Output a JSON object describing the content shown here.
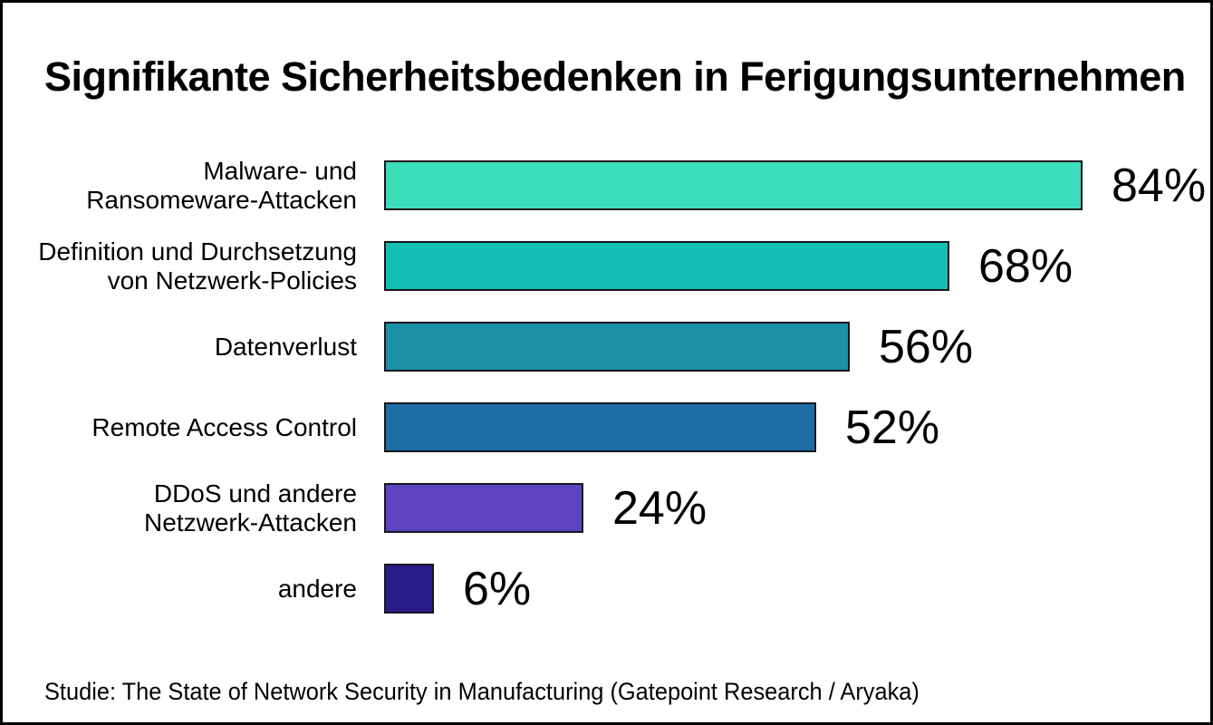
{
  "chart_data": {
    "type": "bar",
    "orientation": "horizontal",
    "title": "Signifikante Sicherheitsbedenken in Ferigungsunternehmen",
    "categories": [
      "Malware- und\nRansomeware-Attacken",
      "Definition und Durchsetzung\nvon Netzwerk-Policies",
      "Datenverlust",
      "Remote Access Control",
      "DDoS und andere\nNetzwerk-Attacken",
      "andere"
    ],
    "values": [
      84,
      68,
      56,
      52,
      24,
      6
    ],
    "value_labels": [
      "84%",
      "68%",
      "56%",
      "52%",
      "24%",
      "6%"
    ],
    "colors": [
      "#3cddbb",
      "#12bfb2",
      "#1b92a5",
      "#1c6ea4",
      "#5d43c0",
      "#2a1d8a"
    ],
    "bar_border_color": "#16161d",
    "xlim": [
      0,
      100
    ],
    "grid": false,
    "legend": false,
    "source": "Studie: The State of Network Security in Manufacturing (Gatepoint Research / Aryaka)"
  }
}
